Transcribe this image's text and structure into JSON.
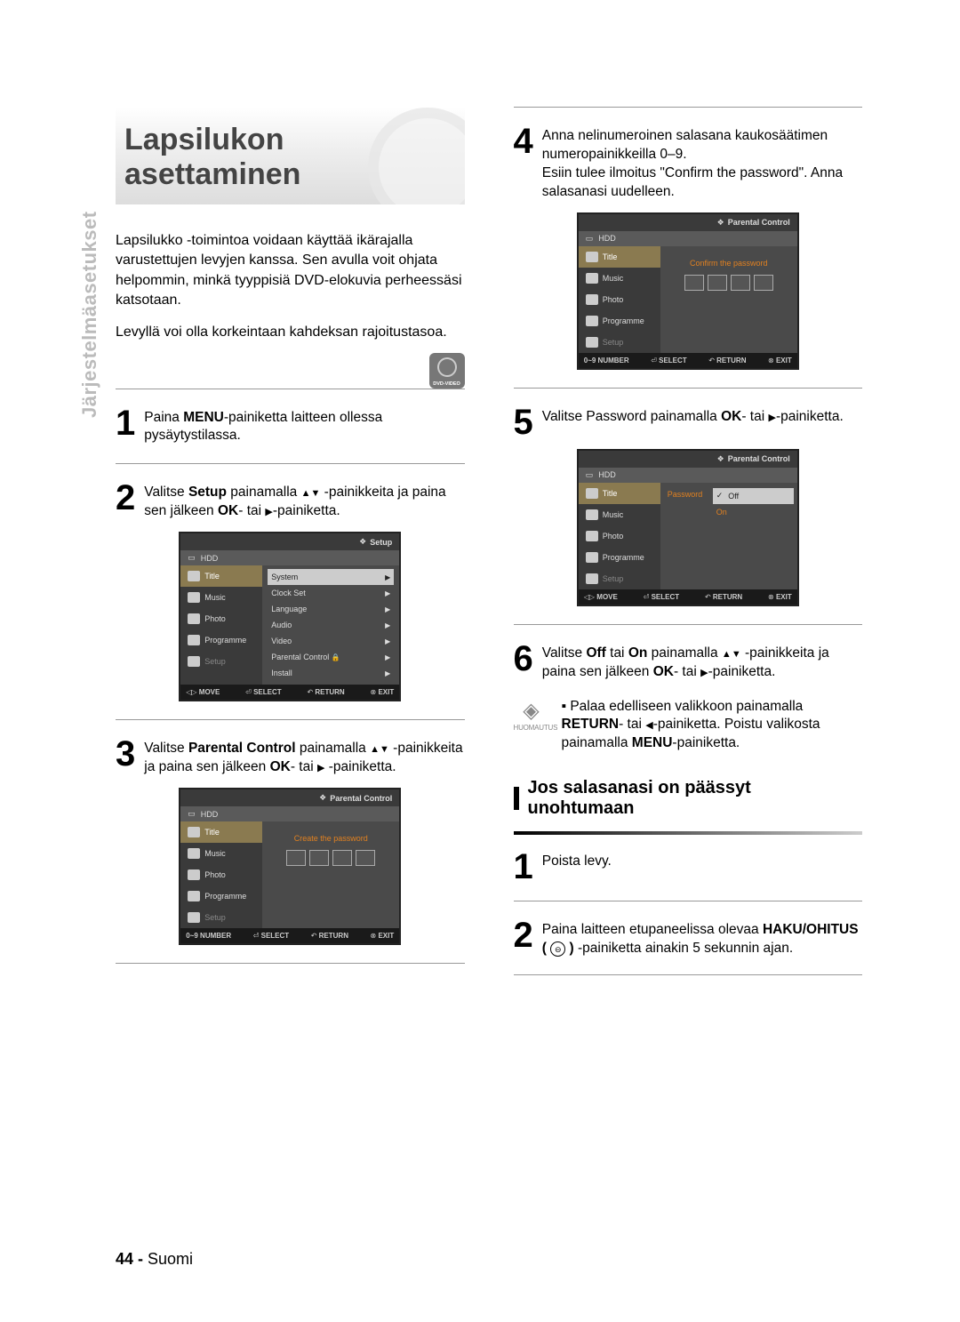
{
  "sidebar_label": "Järjestelmäasetukset",
  "title": "Lapsilukon asettaminen",
  "intro": "Lapsilukko -toimintoa voidaan käyttää ikärajalla varustettujen levyjen kanssa. Sen avulla voit ohjata helpommin, minkä tyyppisiä DVD-elokuvia perheessäsi katsotaan.",
  "sub": "Levyllä voi olla korkeintaan kahdeksan rajoitustasoa.",
  "steps": {
    "s1": {
      "n": "1",
      "pre": "Paina ",
      "b": "MENU",
      "post": "-painiketta laitteen ollessa pysäytystilassa."
    },
    "s2": {
      "n": "2",
      "t1": "Valitse ",
      "b": "Setup",
      "t2": " painamalla ",
      "t3": " -painikkeita ja paina sen jälkeen ",
      "b2": "OK",
      "t4": "- tai ",
      "t5": "-painiketta."
    },
    "s3": {
      "n": "3",
      "t1": "Valitse ",
      "b": "Parental Control",
      "t2": " painamalla ",
      "t3": " -painikkeita ja paina sen jälkeen ",
      "b2": "OK",
      "t4": "- tai ",
      "t5": " -painiketta."
    },
    "s4": {
      "n": "4",
      "line1": "Anna nelinumeroinen salasana kaukosäätimen numeropainikkeilla 0–9.",
      "line2": "Esiin tulee ilmoitus \"Confirm the password\". Anna salasanasi uudelleen."
    },
    "s5": {
      "n": "5",
      "t1": "Valitse Password painamalla ",
      "b": "OK",
      "t2": "- tai ",
      "t3": "-painiketta."
    },
    "s6": {
      "n": "6",
      "t1": "Valitse ",
      "b1": "Off",
      "t2": " tai ",
      "b2": "On",
      "t3": " painamalla ",
      "t4": " -painikkeita ja paina sen jälkeen ",
      "b3": "OK",
      "t5": "- tai ",
      "t6": "-painiketta."
    }
  },
  "note": {
    "label": "HUOMAUTUS",
    "text1": "Palaa edelliseen valikkoon painamalla ",
    "b1": "RETURN",
    "text2": "- tai ",
    "text3": "-painiketta. Poistu valikosta painamalla ",
    "b2": "MENU",
    "text4": "-painiketta."
  },
  "forgot": {
    "heading": "Jos salasanasi on päässyt unohtumaan",
    "s1": {
      "n": "1",
      "t": "Poista levy."
    },
    "s2": {
      "n": "2",
      "t1": "Paina laitteen etupaneelissa olevaa ",
      "b": "HAKU/OHITUS ( ",
      "icon": "⊖",
      "b2": " )",
      "t2": " -painiketta ainakin 5 sekunnin ajan."
    }
  },
  "menus": {
    "side": {
      "hdd": "HDD",
      "title": "Title",
      "music": "Music",
      "photo": "Photo",
      "programme": "Programme",
      "setup": "Setup"
    },
    "ft_move": {
      "a": "MOVE",
      "b": "SELECT",
      "c": "RETURN",
      "d": "EXIT"
    },
    "ft_num": {
      "a": "0~9 NUMBER",
      "b": "SELECT",
      "c": "RETURN",
      "d": "EXIT"
    },
    "setup_hd": "Setup",
    "pc_hd": "Parental Control",
    "setup_items": [
      "System",
      "Clock Set",
      "Language",
      "Audio",
      "Video",
      "Parental Control",
      "Install"
    ],
    "create_pw": "Create the password",
    "confirm_pw": "Confirm the password",
    "pw_label": "Password",
    "off": "Off",
    "on": "On"
  },
  "footer": {
    "page": "44 - ",
    "lang": "Suomi"
  }
}
